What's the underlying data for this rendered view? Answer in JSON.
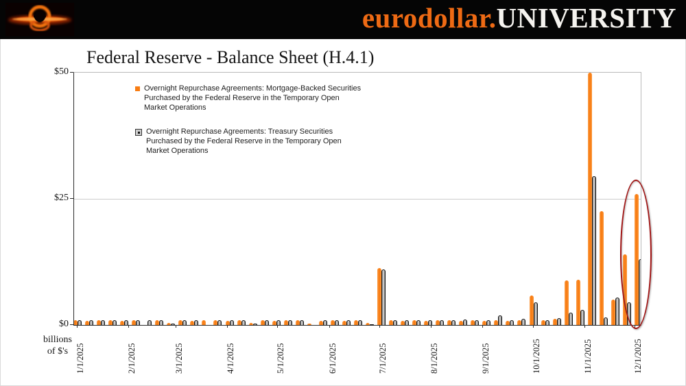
{
  "header": {
    "brand_orange": "eurodollar.",
    "brand_white": "UNIVERSITY",
    "logo_icon": "black-hole-logo"
  },
  "chart_data": {
    "type": "bar",
    "title": "Federal Reserve - Balance Sheet (H.4.1)",
    "ylabel": "billions of $'s",
    "ylabel_lines": [
      "billions",
      "of $'s"
    ],
    "ylim": [
      0,
      50
    ],
    "yticks": [
      {
        "value": 0,
        "label": "$0"
      },
      {
        "value": 25,
        "label": "$25"
      },
      {
        "value": 50,
        "label": "$50"
      }
    ],
    "x_tick_labels": [
      "1/1/2025",
      "2/1/2025",
      "3/1/2025",
      "4/1/2025",
      "5/1/2025",
      "6/1/2025",
      "7/1/2025",
      "8/1/2025",
      "9/1/2025",
      "10/1/2025",
      "11/1/2025",
      "12/1/2025"
    ],
    "grid": "horizontal-at-25",
    "legend_position": "top-left-inside",
    "series": [
      {
        "name": "mbs_repo",
        "color": "#f87c12",
        "legend_lines": [
          "Overnight Repurchase Agreements: Mortgage-Backed Securities",
          "Purchased by the Federal Reserve in the Temporary Open",
          "Market Operations"
        ]
      },
      {
        "name": "treasury_repo",
        "color": "#b5b5b5",
        "legend_lines": [
          "Overnight Repurchase Agreements: Treasury Securities",
          "Purchased by the Federal Reserve in the Temporary Open",
          "Market Operations"
        ]
      }
    ],
    "weeks": [
      {
        "date": "1/1/2025",
        "mbs": 0.9,
        "tsy": 1.0
      },
      {
        "date": "1/8/2025",
        "mbs": 0.8,
        "tsy": 0.9
      },
      {
        "date": "1/15/2025",
        "mbs": 0.9,
        "tsy": 1.0
      },
      {
        "date": "1/22/2025",
        "mbs": 0.9,
        "tsy": 1.0
      },
      {
        "date": "1/29/2025",
        "mbs": 0.8,
        "tsy": 0.9
      },
      {
        "date": "2/5/2025",
        "mbs": 0.9,
        "tsy": 1.0
      },
      {
        "date": "2/12/2025",
        "mbs": 0.0,
        "tsy": 1.0
      },
      {
        "date": "2/19/2025",
        "mbs": 0.9,
        "tsy": 1.0
      },
      {
        "date": "2/26/2025",
        "mbs": 0.4,
        "tsy": 0.3
      },
      {
        "date": "3/5/2025",
        "mbs": 0.9,
        "tsy": 1.0
      },
      {
        "date": "3/12/2025",
        "mbs": 0.8,
        "tsy": 0.9
      },
      {
        "date": "3/19/2025",
        "mbs": 0.9,
        "tsy": 0.0
      },
      {
        "date": "3/26/2025",
        "mbs": 0.9,
        "tsy": 1.0
      },
      {
        "date": "4/2/2025",
        "mbs": 0.8,
        "tsy": 0.9
      },
      {
        "date": "4/9/2025",
        "mbs": 0.9,
        "tsy": 1.0
      },
      {
        "date": "4/16/2025",
        "mbs": 0.4,
        "tsy": 0.3
      },
      {
        "date": "4/23/2025",
        "mbs": 0.9,
        "tsy": 1.0
      },
      {
        "date": "4/30/2025",
        "mbs": 0.8,
        "tsy": 0.9
      },
      {
        "date": "5/7/2025",
        "mbs": 0.9,
        "tsy": 1.0
      },
      {
        "date": "5/14/2025",
        "mbs": 0.9,
        "tsy": 1.0
      },
      {
        "date": "5/21/2025",
        "mbs": 0.3,
        "tsy": 0.0
      },
      {
        "date": "5/28/2025",
        "mbs": 0.8,
        "tsy": 0.9
      },
      {
        "date": "6/4/2025",
        "mbs": 0.9,
        "tsy": 1.0
      },
      {
        "date": "6/11/2025",
        "mbs": 0.8,
        "tsy": 0.9
      },
      {
        "date": "6/18/2025",
        "mbs": 0.9,
        "tsy": 1.0
      },
      {
        "date": "6/25/2025",
        "mbs": 0.4,
        "tsy": 0.2
      },
      {
        "date": "7/2/2025",
        "mbs": 11.3,
        "tsy": 11.0
      },
      {
        "date": "7/9/2025",
        "mbs": 0.9,
        "tsy": 1.0
      },
      {
        "date": "7/16/2025",
        "mbs": 0.8,
        "tsy": 1.0
      },
      {
        "date": "7/23/2025",
        "mbs": 0.9,
        "tsy": 1.0
      },
      {
        "date": "7/30/2025",
        "mbs": 0.8,
        "tsy": 0.9
      },
      {
        "date": "8/6/2025",
        "mbs": 0.9,
        "tsy": 1.0
      },
      {
        "date": "8/13/2025",
        "mbs": 0.9,
        "tsy": 1.0
      },
      {
        "date": "8/20/2025",
        "mbs": 0.8,
        "tsy": 1.1
      },
      {
        "date": "8/27/2025",
        "mbs": 0.9,
        "tsy": 1.0
      },
      {
        "date": "9/3/2025",
        "mbs": 0.8,
        "tsy": 0.9
      },
      {
        "date": "9/10/2025",
        "mbs": 0.9,
        "tsy": 1.9
      },
      {
        "date": "9/17/2025",
        "mbs": 0.8,
        "tsy": 0.9
      },
      {
        "date": "9/24/2025",
        "mbs": 1.0,
        "tsy": 1.2
      },
      {
        "date": "10/1/2025",
        "mbs": 5.8,
        "tsy": 4.5
      },
      {
        "date": "10/8/2025",
        "mbs": 0.9,
        "tsy": 1.0
      },
      {
        "date": "10/15/2025",
        "mbs": 1.2,
        "tsy": 1.4
      },
      {
        "date": "10/22/2025",
        "mbs": 8.8,
        "tsy": 2.5
      },
      {
        "date": "10/29/2025",
        "mbs": 9.0,
        "tsy": 3.0
      },
      {
        "date": "11/5/2025",
        "mbs": 52.0,
        "tsy": 29.5
      },
      {
        "date": "11/12/2025",
        "mbs": 22.5,
        "tsy": 1.5
      },
      {
        "date": "11/19/2025",
        "mbs": 5.0,
        "tsy": 5.5
      },
      {
        "date": "11/26/2025",
        "mbs": 14.0,
        "tsy": 4.5
      },
      {
        "date": "12/3/2025",
        "mbs": 26.0,
        "tsy": 13.0
      }
    ],
    "annotation": {
      "shape": "ellipse",
      "color": "#a01313",
      "highlights": "late November / December 2025 repo spike"
    }
  }
}
